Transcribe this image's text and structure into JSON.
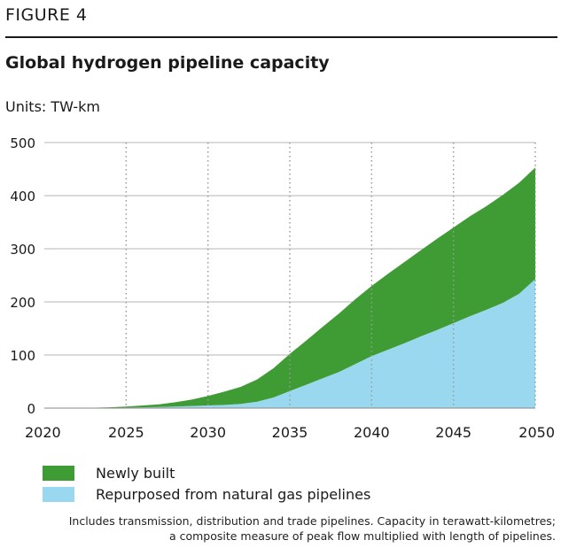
{
  "figure_label": "FIGURE 4",
  "units_label": "Units: TW-km",
  "note_lines": [
    "Includes transmission, distribution and trade pipelines. Capacity in terawatt-kilometres;",
    "a composite measure of peak flow multiplied with length of pipelines."
  ],
  "chart_data": {
    "type": "area",
    "stacked": true,
    "title": "Global hydrogen pipeline capacity",
    "xlabel": "",
    "ylabel": "",
    "xlim": [
      2020,
      2050
    ],
    "ylim": [
      0,
      500
    ],
    "x_ticks": [
      2020,
      2025,
      2030,
      2035,
      2040,
      2045,
      2050
    ],
    "y_ticks": [
      0,
      100,
      200,
      300,
      400,
      500
    ],
    "grid": {
      "x": "dotted",
      "y": "solid"
    },
    "legend_position": "bottom-left",
    "x": [
      2020,
      2022,
      2024,
      2025,
      2026,
      2027,
      2028,
      2029,
      2030,
      2031,
      2032,
      2033,
      2034,
      2035,
      2036,
      2037,
      2038,
      2039,
      2040,
      2041,
      2042,
      2043,
      2044,
      2045,
      2046,
      2047,
      2048,
      2049,
      2050
    ],
    "series": [
      {
        "name": "Repurposed from natural gas pipelines",
        "color": "#9ad8f0",
        "values": [
          0,
          0,
          0.5,
          1,
          1.5,
          2,
          3,
          4,
          5,
          6,
          8,
          12,
          20,
          32,
          44,
          56,
          68,
          83,
          98,
          110,
          122,
          135,
          147,
          160,
          173,
          185,
          198,
          215,
          243
        ]
      },
      {
        "name": "Newly built",
        "color": "#3f9c35",
        "values": [
          0,
          0,
          1,
          2,
          3.5,
          5,
          8,
          12,
          18,
          25,
          32,
          42,
          55,
          70,
          83,
          97,
          110,
          122,
          132,
          143,
          153,
          162,
          172,
          180,
          188,
          195,
          203,
          209,
          210
        ]
      }
    ]
  }
}
